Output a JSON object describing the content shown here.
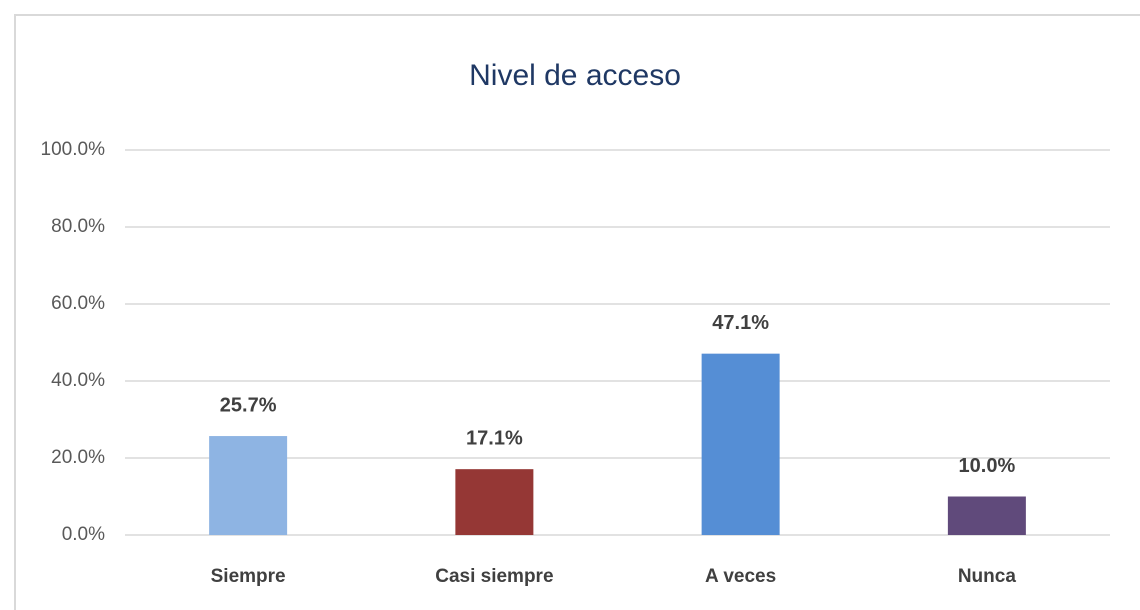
{
  "chart_data": {
    "type": "bar",
    "title": "Nivel de acceso",
    "categories": [
      "Siempre",
      "Casi siempre",
      "A veces",
      "Nunca"
    ],
    "values": [
      25.7,
      17.1,
      47.1,
      10.0
    ],
    "value_labels": [
      "25.7%",
      "17.1%",
      "47.1%",
      "10.0%"
    ],
    "colors": [
      "#8eb4e3",
      "#953735",
      "#558ed5",
      "#604a7b"
    ],
    "ylim": [
      0,
      100
    ],
    "yticks": [
      {
        "value": 0,
        "label": "0.0%"
      },
      {
        "value": 20,
        "label": "20.0%"
      },
      {
        "value": 40,
        "label": "40.0%"
      },
      {
        "value": 60,
        "label": "60.0%"
      },
      {
        "value": 80,
        "label": "80.0%"
      },
      {
        "value": 100,
        "label": "100.0%"
      }
    ],
    "grid": true
  }
}
